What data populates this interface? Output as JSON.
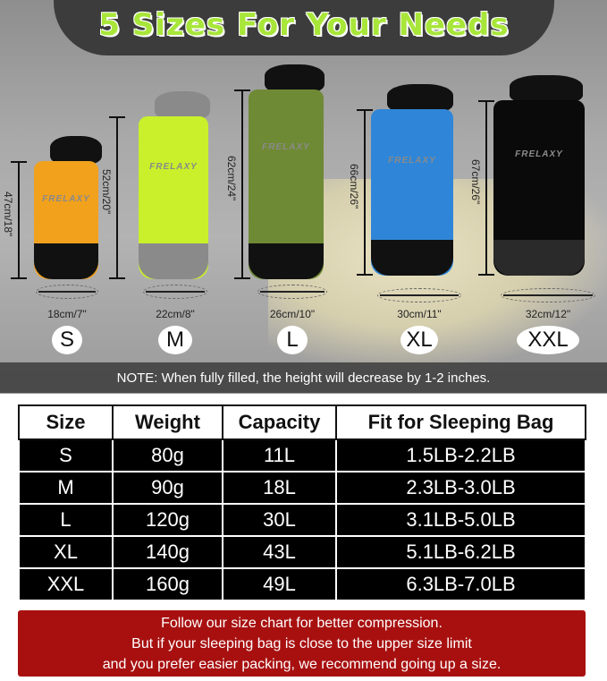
{
  "header": {
    "title": "5 Sizes For Your Needs"
  },
  "bags": [
    {
      "size": "S",
      "height": "47cm/18\"",
      "width": "18cm/7\"",
      "color": "#f2a11c",
      "brand": "FRELAXY"
    },
    {
      "size": "M",
      "height": "52cm/20\"",
      "width": "22cm/8\"",
      "color": "#c9f02a",
      "brand": "FRELAXY"
    },
    {
      "size": "L",
      "height": "62cm/24\"",
      "width": "26cm/10\"",
      "color": "#6f8a35",
      "brand": "FRELAXY"
    },
    {
      "size": "XL",
      "height": "66cm/26\"",
      "width": "30cm/11\"",
      "color": "#2f86d8",
      "brand": "FRELAXY"
    },
    {
      "size": "XXL",
      "height": "67cm/26\"",
      "width": "32cm/12\"",
      "color": "#0a0a0a",
      "brand": "FRELAXY"
    }
  ],
  "note": "NOTE: When fully filled, the height will decrease by 1-2 inches.",
  "table": {
    "headers": [
      "Size",
      "Weight",
      "Capacity",
      "Fit for Sleeping Bag"
    ],
    "rows": [
      [
        "S",
        "80g",
        "11L",
        "1.5LB-2.2LB"
      ],
      [
        "M",
        "90g",
        "18L",
        "2.3LB-3.0LB"
      ],
      [
        "L",
        "120g",
        "30L",
        "3.1LB-5.0LB"
      ],
      [
        "XL",
        "140g",
        "43L",
        "5.1LB-6.2LB"
      ],
      [
        "XXL",
        "160g",
        "49L",
        "6.3LB-7.0LB"
      ]
    ]
  },
  "advice": [
    "Follow our size chart for better compression.",
    "But if your sleeping bag is close to the upper size limit",
    "and you prefer easier packing, we recommend going up a size."
  ]
}
